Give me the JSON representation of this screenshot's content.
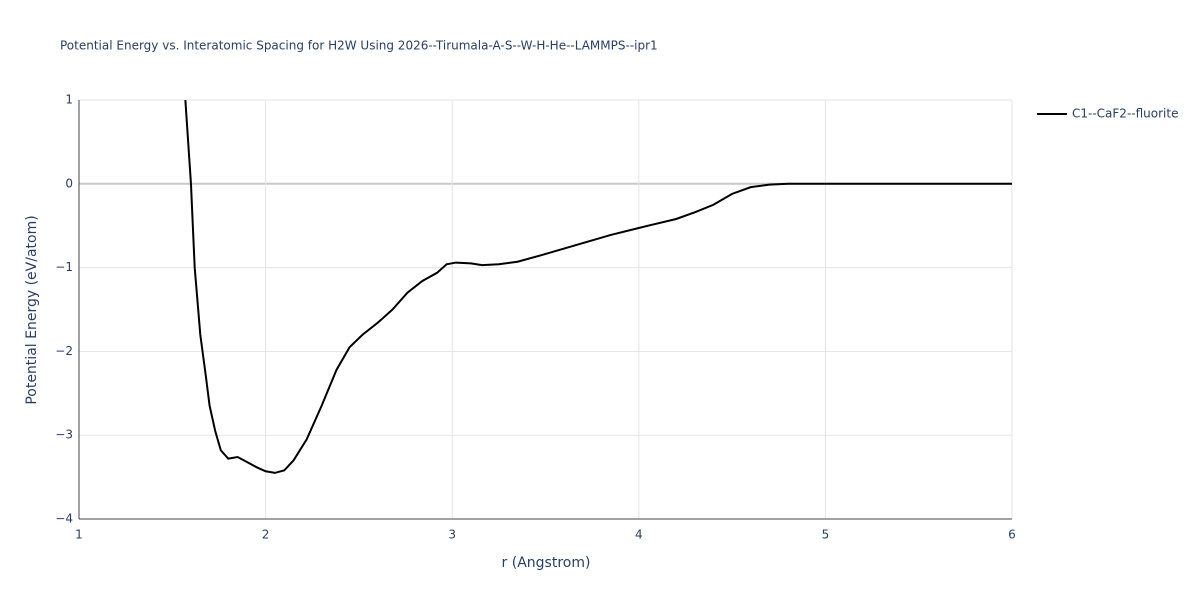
{
  "chart_data": {
    "type": "line",
    "title": "Potential Energy vs. Interatomic Spacing for H2W Using 2026--Tirumala-A-S--W-H-He--LAMMPS--ipr1",
    "x_label": "r (Angstrom)",
    "y_label": "Potential Energy (eV/atom)",
    "x": [
      1.57,
      1.6,
      1.62,
      1.65,
      1.68,
      1.7,
      1.73,
      1.76,
      1.8,
      1.85,
      1.9,
      1.95,
      2.0,
      2.05,
      2.1,
      2.15,
      2.22,
      2.3,
      2.38,
      2.45,
      2.52,
      2.6,
      2.68,
      2.76,
      2.84,
      2.92,
      2.97,
      3.02,
      3.1,
      3.16,
      3.25,
      3.35,
      3.48,
      3.65,
      3.85,
      4.05,
      4.2,
      4.3,
      4.4,
      4.5,
      4.6,
      4.7,
      4.8,
      5.0,
      6.0
    ],
    "series": [
      {
        "name": "C1--CaF2--fluorite",
        "color": "#000000",
        "values": [
          1.0,
          0.0,
          -1.0,
          -1.8,
          -2.3,
          -2.65,
          -2.95,
          -3.18,
          -3.28,
          -3.26,
          -3.32,
          -3.38,
          -3.43,
          -3.45,
          -3.42,
          -3.3,
          -3.05,
          -2.65,
          -2.22,
          -1.95,
          -1.8,
          -1.66,
          -1.5,
          -1.3,
          -1.16,
          -1.06,
          -0.96,
          -0.94,
          -0.95,
          -0.97,
          -0.96,
          -0.93,
          -0.85,
          -0.74,
          -0.61,
          -0.5,
          -0.42,
          -0.34,
          -0.25,
          -0.12,
          -0.04,
          -0.01,
          0.0,
          0.0,
          0.0
        ]
      }
    ],
    "xlim": [
      1,
      6
    ],
    "xticks": [
      1,
      2,
      3,
      4,
      5,
      6
    ],
    "ylim": [
      -4,
      1
    ],
    "yticks": [
      {
        "value": -4,
        "label": "−4"
      },
      {
        "value": -3,
        "label": "−3"
      },
      {
        "value": -2,
        "label": "−2"
      },
      {
        "value": -1,
        "label": "−1"
      },
      0,
      1
    ],
    "grid": true
  }
}
